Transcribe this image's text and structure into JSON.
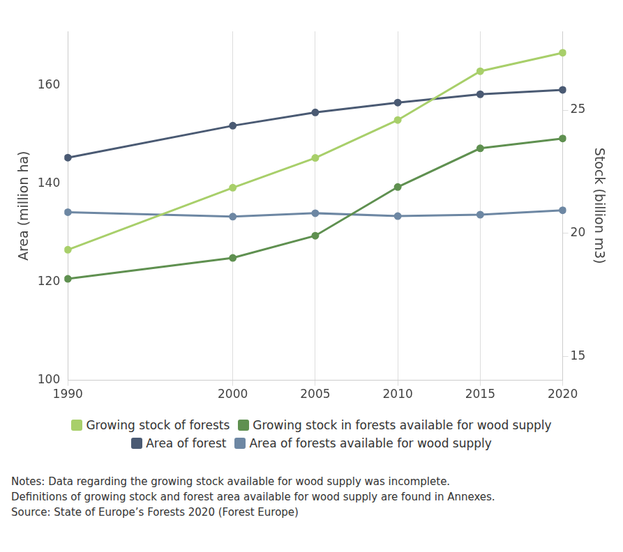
{
  "chart_data": {
    "type": "line",
    "x": [
      1990,
      2000,
      2005,
      2010,
      2015,
      2020
    ],
    "xlim": [
      1990,
      2020
    ],
    "xticks": [
      1990,
      2000,
      2005,
      2010,
      2015,
      2020
    ],
    "y_label": "Area (million ha)",
    "ylim": [
      100,
      171
    ],
    "yticks": [
      100,
      120,
      140,
      160
    ],
    "y2_label": "Stock (billion m3)",
    "y2lim": [
      14.03,
      28.2
    ],
    "y2ticks": [
      15,
      20,
      25
    ],
    "grid": "x",
    "marker": "circle",
    "series": [
      {
        "name": "Growing stock of forests",
        "color": "#a8cf6a",
        "axis": "y2",
        "values": [
          19.33,
          21.85,
          23.06,
          24.6,
          26.58,
          27.33
        ]
      },
      {
        "name": "Growing stock in forests available for wood supply",
        "color": "#5f9050",
        "axis": "y2",
        "values": [
          18.15,
          19.0,
          19.9,
          21.88,
          23.45,
          23.85
        ]
      },
      {
        "name": "Area of forest",
        "color": "#4a5a73",
        "values": [
          145.3,
          151.8,
          154.5,
          156.5,
          158.2,
          159.1
        ]
      },
      {
        "name": "Area of forests available for wood supply",
        "color": "#6d87a3",
        "values": [
          134.2,
          133.3,
          134.0,
          133.4,
          133.7,
          134.6
        ]
      }
    ],
    "notes": [
      "Notes: Data regarding the growing stock available for wood supply was incomplete.",
      "Definitions of growing stock and forest area available for wood supply are found in Annexes.",
      "Source: State of Europe’s Forests 2020 (Forest Europe)"
    ]
  }
}
